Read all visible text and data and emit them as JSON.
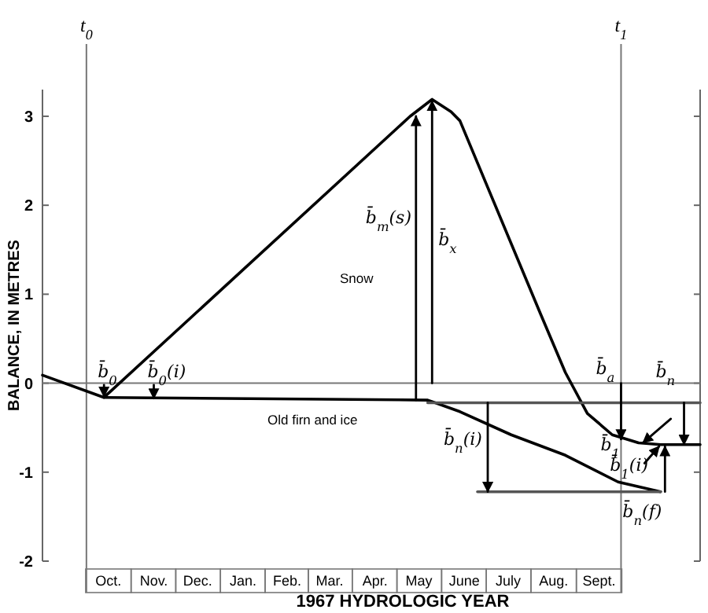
{
  "chart_data": {
    "type": "line",
    "xlabel": "1967 HYDROLOGIC YEAR",
    "ylabel": "BALANCE, IN METRES",
    "xlim": [
      "1966-09-01",
      "1967-11-24"
    ],
    "ylim": [
      -2,
      3.3
    ],
    "yticks": [
      -2,
      -1,
      0,
      1,
      2,
      3
    ],
    "xticks": [
      {
        "value": "1966-10-16",
        "label": "Oct."
      },
      {
        "value": "1966-11-16",
        "label": "Nov."
      },
      {
        "value": "1966-12-16",
        "label": "Dec."
      },
      {
        "value": "1967-01-16",
        "label": "Jan."
      },
      {
        "value": "1967-02-15",
        "label": "Feb."
      },
      {
        "value": "1967-03-16",
        "label": "Mar."
      },
      {
        "value": "1967-04-16",
        "label": "Apr."
      },
      {
        "value": "1967-05-16",
        "label": "May"
      },
      {
        "value": "1967-06-16",
        "label": "June"
      },
      {
        "value": "1967-07-16",
        "label": "July"
      },
      {
        "value": "1967-08-16",
        "label": "Aug."
      },
      {
        "value": "1967-09-16",
        "label": "Sept."
      }
    ],
    "grid": false,
    "line_style": "solid",
    "series": [
      {
        "color": "#000000",
        "x": [
          "1966-09-01",
          "1966-10-13",
          "1967-05-10",
          "1967-05-25",
          "1967-06-07",
          "1967-06-13",
          "1967-08-07",
          "1967-08-24",
          "1967-09-08",
          "1967-09-25",
          "1967-10-13",
          "1967-10-28",
          "1967-11-24"
        ],
        "values": [
          0.09,
          -0.16,
          3.0,
          3.19,
          3.05,
          2.95,
          0.78,
          0.12,
          -0.34,
          -0.58,
          -0.67,
          -0.69,
          -0.69
        ]
      },
      {
        "color": "#000000",
        "x": [
          "1966-10-13",
          "1967-05-22",
          "1967-06-13",
          "1967-07-18",
          "1967-08-24",
          "1967-09-29",
          "1967-10-28"
        ],
        "values": [
          -0.16,
          -0.19,
          -0.32,
          -0.58,
          -0.81,
          -1.11,
          -1.22
        ]
      },
      {
        "color": "#555555",
        "x": [
          "1967-05-22",
          "1967-11-24"
        ],
        "values": [
          -0.22,
          -0.22
        ]
      },
      {
        "color": "#555555",
        "x": [
          "1967-06-25",
          "1967-10-28"
        ],
        "values": [
          -1.22,
          -1.22
        ]
      },
      {
        "color": "#000000",
        "x": [
          "1966-10-13",
          "1966-10-13"
        ],
        "values": [
          -0.02,
          -0.15
        ]
      },
      {
        "color": "#000000",
        "x": [
          "1966-11-16",
          "1966-11-16"
        ],
        "values": [
          -0.02,
          -0.17
        ]
      },
      {
        "color": "#000000",
        "x": [
          "1967-05-14",
          "1967-05-14"
        ],
        "values": [
          -0.19,
          3.0
        ]
      },
      {
        "color": "#000000",
        "x": [
          "1967-05-25",
          "1967-05-25"
        ],
        "values": [
          0,
          3.17
        ]
      },
      {
        "color": "#000000",
        "x": [
          "1967-07-02",
          "1967-07-02"
        ],
        "values": [
          -0.22,
          -1.22
        ]
      },
      {
        "color": "#000000",
        "x": [
          "1967-10-01",
          "1967-10-01"
        ],
        "values": [
          0,
          -0.63
        ]
      },
      {
        "color": "#000000",
        "x": [
          "1967-11-13",
          "1967-11-13"
        ],
        "values": [
          -0.22,
          -0.69
        ]
      },
      {
        "color": "#000000",
        "x": [
          "1967-10-31",
          "1967-10-31"
        ],
        "values": [
          -1.22,
          -0.71
        ]
      },
      {
        "color": "#000000",
        "x": [
          "1967-11-04",
          "1967-10-16"
        ],
        "values": [
          -0.4,
          -0.67
        ]
      },
      {
        "color": "#000000",
        "x": [
          "1967-10-17",
          "1967-10-27"
        ],
        "values": [
          -0.9,
          -0.71
        ]
      }
    ],
    "ref_lines": [
      {
        "axis": "x",
        "value": "1966-10-01",
        "label": "t$_{0}$",
        "color": "#777777"
      },
      {
        "axis": "x",
        "value": "1967-10-01",
        "label": "t$_{1}$",
        "color": "#777777"
      },
      {
        "axis": "y",
        "value": 0,
        "color": "#777777"
      }
    ],
    "annotations": [
      "Snow",
      "Old firn and ice",
      {
        "text": "b̄$_{0}$",
        "x": "1966-10-13",
        "y": -0.02
      },
      {
        "text": "b̄$_{0}$(i)",
        "x": "1966-11-16",
        "y": -0.02
      },
      {
        "text": "b̄$_{m}$(s)",
        "x": "1967-05-14",
        "y": 1.8
      },
      {
        "text": "b̄$_{x}$",
        "x": "1967-05-25",
        "y": 1.55
      },
      {
        "text": "b̄$_{n}$(i)",
        "x": "1967-07-02",
        "y": -0.69
      },
      {
        "text": "b̄$_{a}$",
        "x": "1967-10-01",
        "y": 0
      },
      {
        "text": "b̄$_{n}$",
        "x": "1967-11-13",
        "y": -0.22
      },
      {
        "text": "b̄$_{1}$",
        "x": "1967-10-16",
        "y": -0.67
      },
      {
        "text": "b̄$_{1}$(i)",
        "x": "1967-10-17",
        "y": -0.9
      },
      {
        "text": "b̄$_{n}$(f)",
        "x": "1967-10-31",
        "y": -1.22
      }
    ]
  }
}
